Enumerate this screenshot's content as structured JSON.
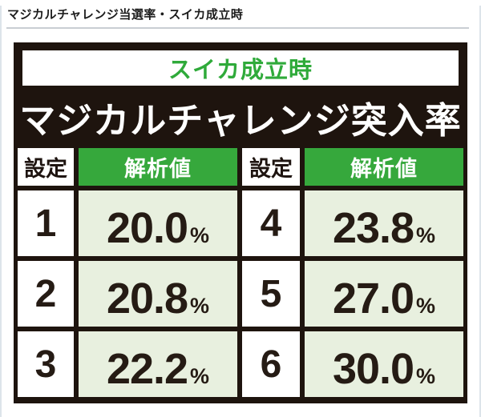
{
  "page": {
    "title": "マジカルチャレンジ当選率・スイカ成立時"
  },
  "panel": {
    "subtitle": "スイカ成立時",
    "title": "マジカルチャレンジ突入率",
    "headers": [
      "設定",
      "解析値",
      "設定",
      "解析値"
    ],
    "rows": [
      {
        "s1": "1",
        "v1": "20.0",
        "u1": "%",
        "s2": "4",
        "v2": "23.8",
        "u2": "%"
      },
      {
        "s1": "2",
        "v1": "20.8",
        "u1": "%",
        "s2": "5",
        "v2": "27.0",
        "u2": "%"
      },
      {
        "s1": "3",
        "v1": "22.2",
        "u1": "%",
        "s2": "6",
        "v2": "30.0",
        "u2": "%"
      }
    ]
  },
  "chart_data": {
    "type": "table",
    "title": "マジカルチャレンジ突入率（スイカ成立時）",
    "columns": [
      "設定",
      "解析値"
    ],
    "settings": [
      1,
      2,
      3,
      4,
      5,
      6
    ],
    "values_percent": [
      20.0,
      20.8,
      22.2,
      23.8,
      27.0,
      30.0
    ]
  },
  "colors": {
    "accent_green": "#36a83c",
    "light_green_cell": "#e8f0df",
    "frame_black": "#1e140e",
    "divider_gray": "#c9ced3",
    "side_line": "#dde4ea",
    "text_dark": "#251b14"
  }
}
